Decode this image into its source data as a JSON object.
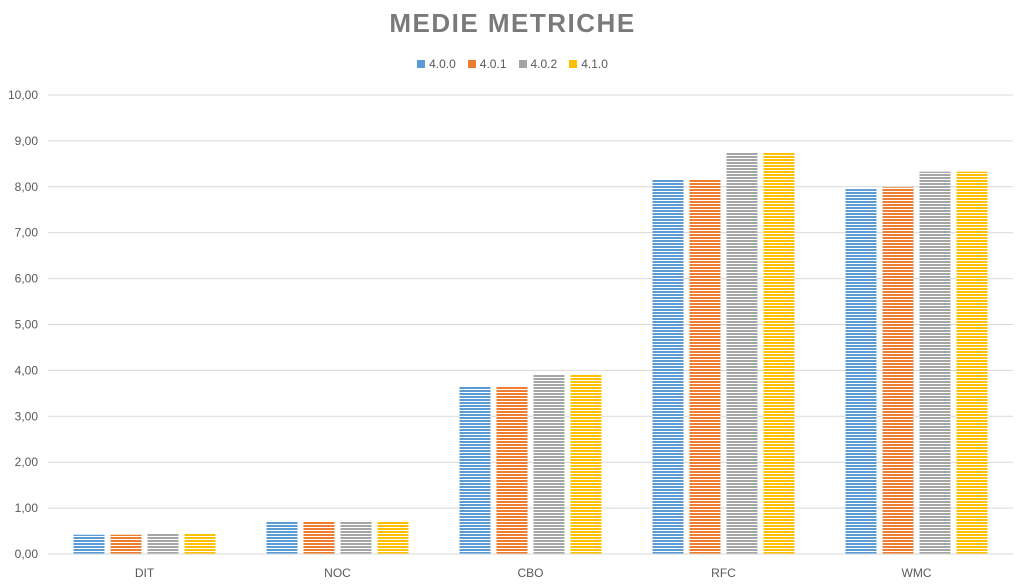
{
  "chart_data": {
    "type": "bar",
    "title": "MEDIE METRICHE",
    "categories": [
      "DIT",
      "NOC",
      "CBO",
      "RFC",
      "WMC"
    ],
    "series": [
      {
        "name": "4.0.0",
        "color": "#5b9bd5",
        "values": [
          0.42,
          0.72,
          3.65,
          8.17,
          7.95
        ]
      },
      {
        "name": "4.0.1",
        "color": "#ed7d31",
        "values": [
          0.42,
          0.72,
          3.65,
          8.17,
          7.99
        ]
      },
      {
        "name": "4.0.2",
        "color": "#a5a5a5",
        "values": [
          0.44,
          0.72,
          3.92,
          8.75,
          8.33
        ]
      },
      {
        "name": "4.1.0",
        "color": "#ffc000",
        "values": [
          0.44,
          0.72,
          3.92,
          8.75,
          8.33
        ]
      }
    ],
    "ylim": [
      0,
      10
    ],
    "yticks": [
      "0,00",
      "1,00",
      "2,00",
      "3,00",
      "4,00",
      "5,00",
      "6,00",
      "7,00",
      "8,00",
      "9,00",
      "10,00"
    ],
    "xlabel": "",
    "ylabel": "",
    "grid": true,
    "legend_position": "top-center"
  }
}
